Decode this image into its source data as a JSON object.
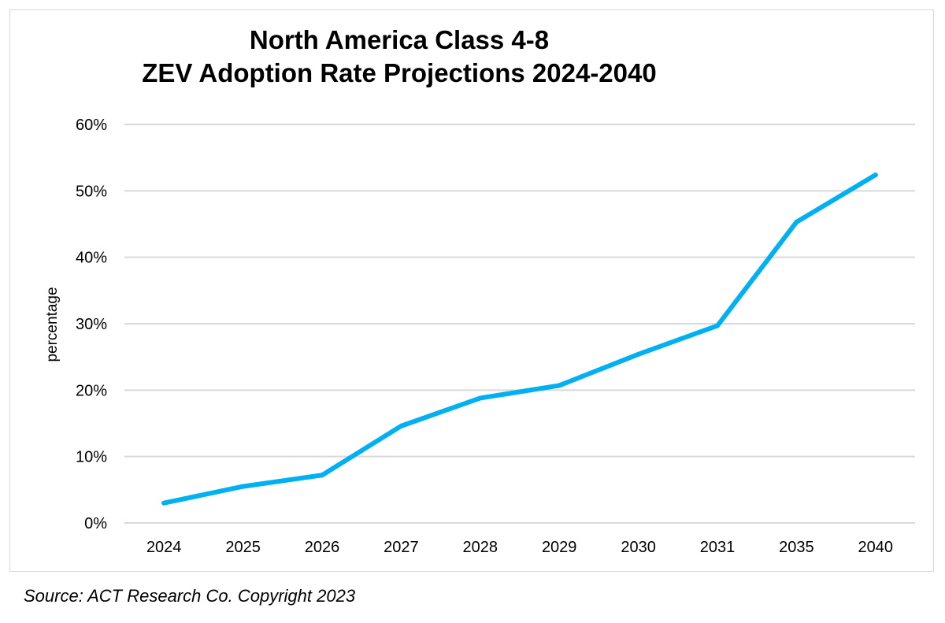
{
  "chart_data": {
    "type": "line",
    "title_lines": [
      "North America Class 4-8",
      "ZEV Adoption Rate Projections 2024-2040"
    ],
    "xlabel": "",
    "ylabel": "percentage",
    "categories": [
      "2024",
      "2025",
      "2026",
      "2027",
      "2028",
      "2029",
      "2030",
      "2031",
      "2035",
      "2040"
    ],
    "series": [
      {
        "name": "ZEV Adoption Rate",
        "values": [
          3,
          5.5,
          7.2,
          14.6,
          18.8,
          20.7,
          25.4,
          29.7,
          45.3,
          52.4
        ],
        "color": "#00b0f0"
      }
    ],
    "ylim": [
      0,
      60
    ],
    "y_ticks": [
      0,
      10,
      20,
      30,
      40,
      50,
      60
    ],
    "y_tick_labels": [
      "0%",
      "10%",
      "20%",
      "30%",
      "40%",
      "50%",
      "60%"
    ],
    "grid": true,
    "grid_color": "#d9d9d9"
  },
  "source": "Source: ACT Research Co. Copyright 2023"
}
